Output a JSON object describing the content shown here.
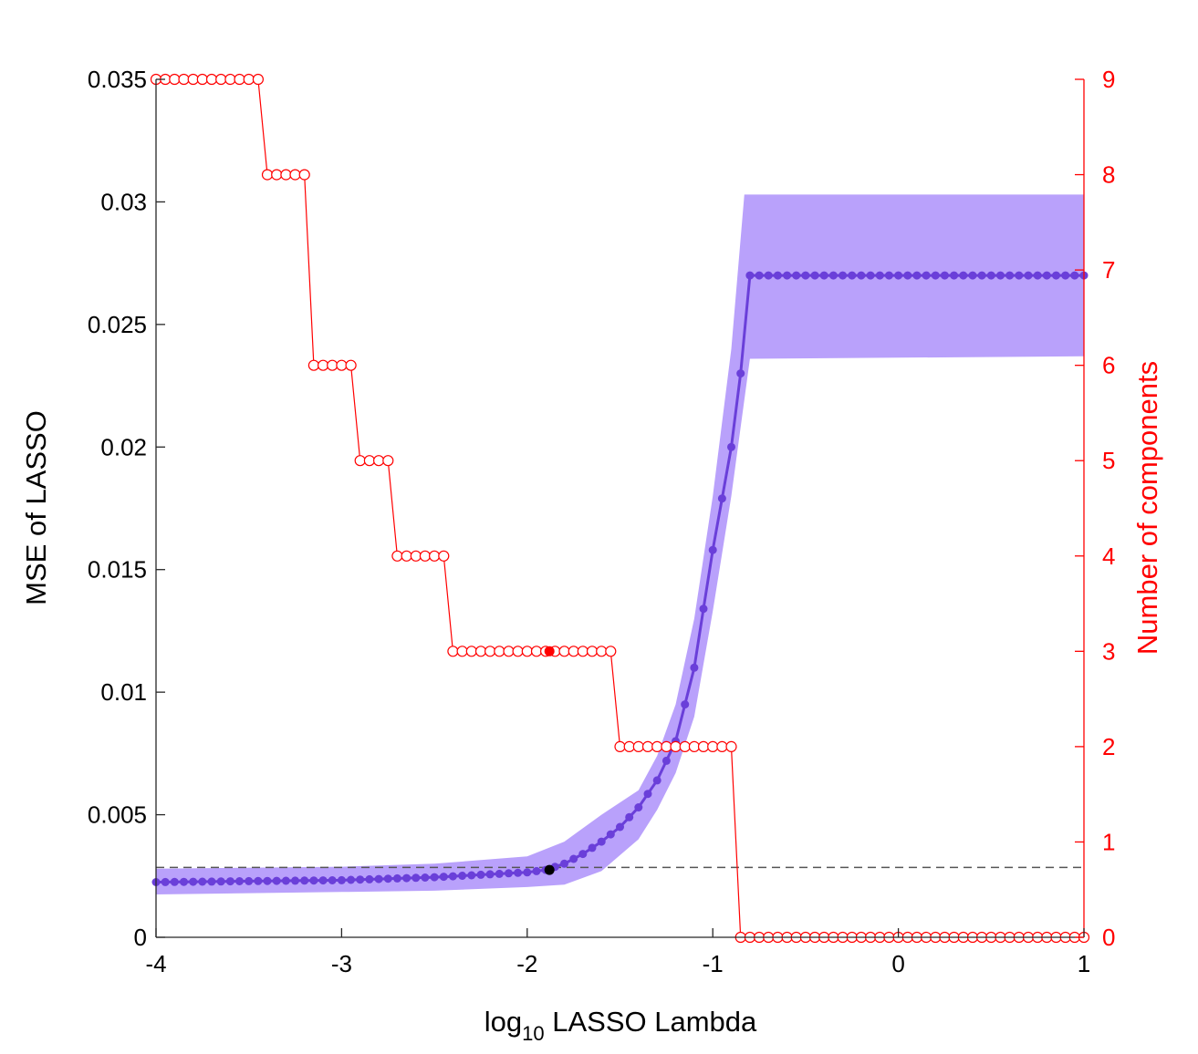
{
  "chart_data": {
    "type": "line",
    "title": "",
    "xlabel": {
      "main": "log",
      "sub": "10",
      "rest": " LASSO Lambda"
    },
    "ylabel_left": "MSE of LASSO",
    "ylabel_right": "Number of components",
    "xlim": [
      -4,
      1
    ],
    "ylim_left": [
      0,
      0.035
    ],
    "ylim_right": [
      0,
      9
    ],
    "x_ticks": [
      -4,
      -3,
      -2,
      -1,
      0,
      1
    ],
    "x_tick_labels": [
      "-4",
      "-3",
      "-2",
      "-1",
      "0",
      "1"
    ],
    "y_left_ticks": [
      0,
      0.005,
      0.01,
      0.015,
      0.02,
      0.025,
      0.03,
      0.035
    ],
    "y_left_tick_labels": [
      "0",
      "0.005",
      "0.01",
      "0.015",
      "0.02",
      "0.025",
      "0.03",
      "0.035"
    ],
    "y_right_ticks": [
      0,
      1,
      2,
      3,
      4,
      5,
      6,
      7,
      8,
      9
    ],
    "y_right_tick_labels": [
      "0",
      "1",
      "2",
      "3",
      "4",
      "5",
      "6",
      "7",
      "8",
      "9"
    ],
    "grid": false,
    "colors": {
      "mse": "#6a3fd9",
      "band": "#b9a1fb",
      "components": "#ff0000",
      "threshold": "#555555",
      "selected_mse": "#000000",
      "selected_components": "#ff0000"
    },
    "mse_curve": {
      "x_start": -4,
      "x_step": 0.05,
      "count": 101,
      "breakpoints": [
        [
          -4.0,
          0.00225
        ],
        [
          -3.0,
          0.00233
        ],
        [
          -2.5,
          0.00245
        ],
        [
          -2.0,
          0.00265
        ],
        [
          -1.9,
          0.00275
        ],
        [
          -1.8,
          0.003
        ],
        [
          -1.7,
          0.0034
        ],
        [
          -1.6,
          0.0039
        ],
        [
          -1.5,
          0.0045
        ],
        [
          -1.4,
          0.0053
        ],
        [
          -1.3,
          0.0064
        ],
        [
          -1.2,
          0.008
        ],
        [
          -1.1,
          0.011
        ],
        [
          -1.0,
          0.0158
        ],
        [
          -0.9,
          0.02
        ],
        [
          -0.85,
          0.023
        ],
        [
          -0.8,
          0.027
        ],
        [
          1.0,
          0.027
        ]
      ]
    },
    "mse_band": {
      "upper": [
        [
          -4.0,
          0.0028
        ],
        [
          -3.0,
          0.00288
        ],
        [
          -2.5,
          0.003
        ],
        [
          -2.0,
          0.0033
        ],
        [
          -1.8,
          0.0039
        ],
        [
          -1.6,
          0.005
        ],
        [
          -1.4,
          0.006
        ],
        [
          -1.3,
          0.0074
        ],
        [
          -1.2,
          0.0095
        ],
        [
          -1.1,
          0.013
        ],
        [
          -1.0,
          0.018
        ],
        [
          -0.9,
          0.024
        ],
        [
          -0.83,
          0.0303
        ],
        [
          1.0,
          0.0303
        ]
      ],
      "lower": [
        [
          -4.0,
          0.00175
        ],
        [
          -3.0,
          0.00185
        ],
        [
          -2.5,
          0.0019
        ],
        [
          -2.0,
          0.00205
        ],
        [
          -1.8,
          0.00215
        ],
        [
          -1.6,
          0.0027
        ],
        [
          -1.4,
          0.004
        ],
        [
          -1.3,
          0.0052
        ],
        [
          -1.2,
          0.0067
        ],
        [
          -1.1,
          0.009
        ],
        [
          -1.0,
          0.0133
        ],
        [
          -0.9,
          0.018
        ],
        [
          -0.8,
          0.0236
        ],
        [
          1.0,
          0.0237
        ]
      ]
    },
    "components_steps": [
      {
        "x_from": -4.0,
        "x_to": -3.45,
        "count": 9
      },
      {
        "x_from": -3.4,
        "x_to": -3.2,
        "count": 8
      },
      {
        "x_from": -3.15,
        "x_to": -2.95,
        "count": 6
      },
      {
        "x_from": -2.9,
        "x_to": -2.75,
        "count": 5
      },
      {
        "x_from": -2.7,
        "x_to": -2.45,
        "count": 4
      },
      {
        "x_from": -2.4,
        "x_to": -1.55,
        "count": 3
      },
      {
        "x_from": -1.5,
        "x_to": -0.9,
        "count": 2
      },
      {
        "x_from": -0.85,
        "x_to": 1.0,
        "count": 0
      }
    ],
    "components_x_step": 0.05,
    "threshold_mse": 0.00285,
    "threshold_x_range": [
      -4,
      1
    ],
    "selected_point": {
      "x": -1.88,
      "mse": 0.00275,
      "components": 3
    }
  }
}
